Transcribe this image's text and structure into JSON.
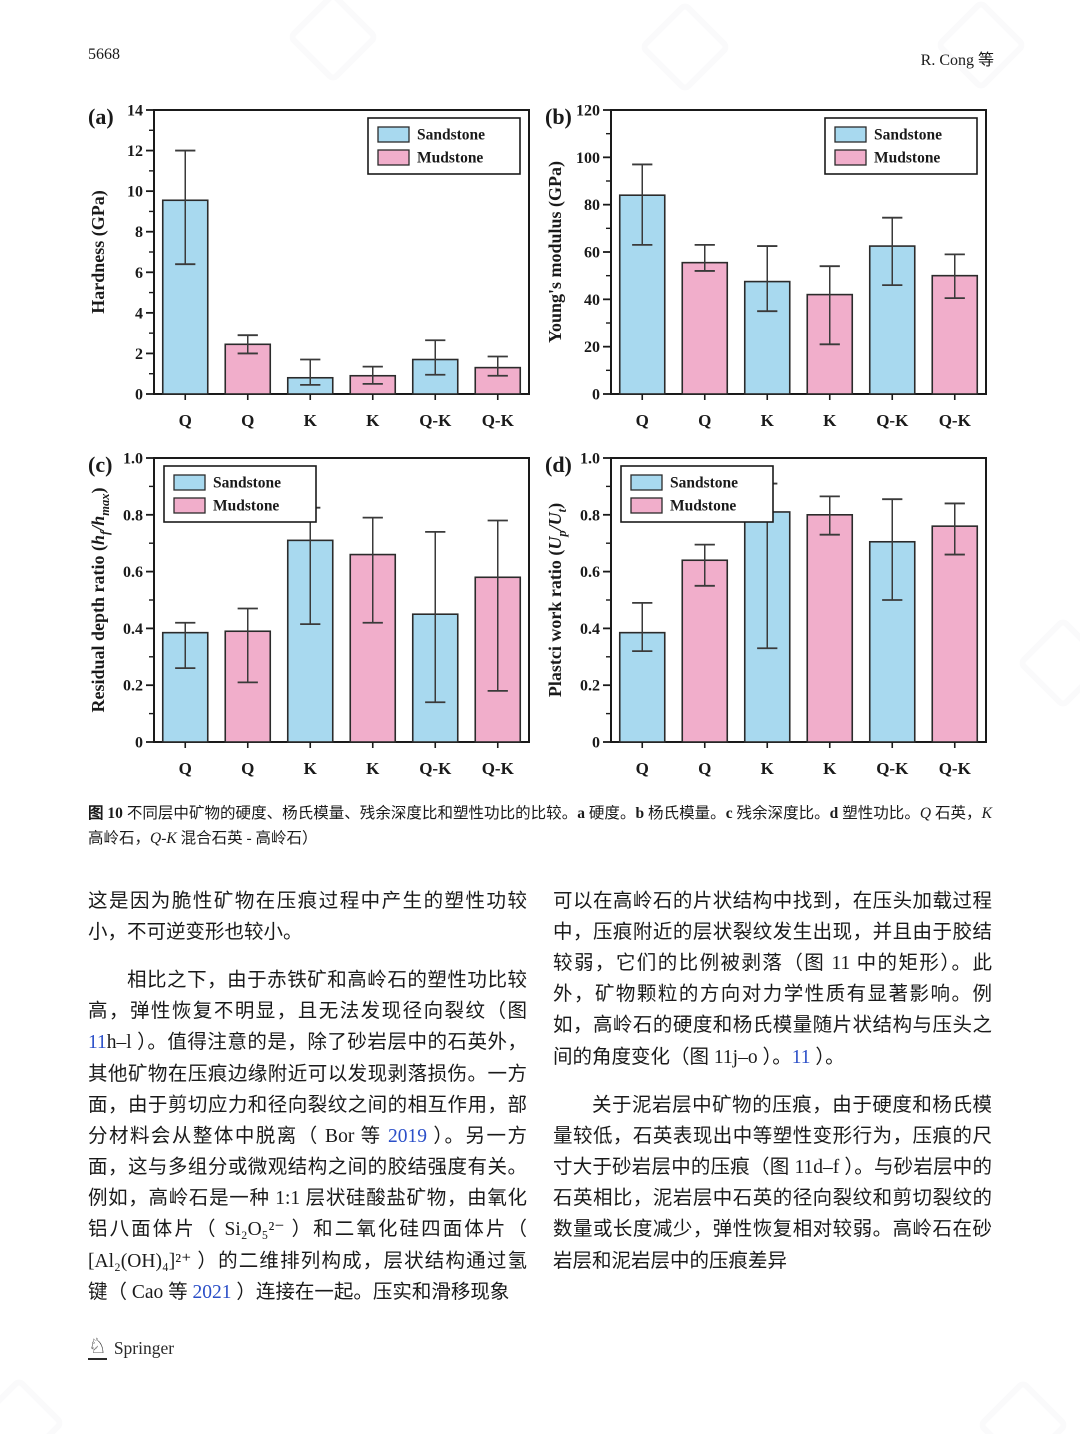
{
  "page": {
    "number": "5668",
    "running_head": "R. Cong 等"
  },
  "colors": {
    "sandstone": "#a8d9ef",
    "mudstone": "#f1aecb",
    "bar_border": "#2b2b2b",
    "axis": "#1a1a1a",
    "error_bar": "#3a3a3a",
    "link": "#2b4fc8"
  },
  "icons": {
    "publisher_logo": "springer-knight-icon",
    "watermark": "translator-watermark-icon"
  },
  "chart_data": [
    {
      "type": "bar",
      "panel": "(a)",
      "ylabel": "Hardness (GPa)",
      "ylabel_parts": [
        {
          "t": "Hardness (GPa)"
        }
      ],
      "ylim": [
        0,
        14
      ],
      "yticks": [
        0,
        2,
        4,
        6,
        8,
        10,
        12,
        14
      ],
      "ytick_labels": [
        "0",
        "2",
        "4",
        "6",
        "8",
        "10",
        "12",
        "14"
      ],
      "categories": [
        "Q",
        "Q",
        "K",
        "K",
        "Q-K",
        "Q-K"
      ],
      "bar_series": [
        "Sandstone",
        "Mudstone",
        "Sandstone",
        "Mudstone",
        "Sandstone",
        "Mudstone"
      ],
      "values": [
        9.55,
        2.45,
        0.8,
        0.9,
        1.7,
        1.3
      ],
      "err_low": [
        6.4,
        2.0,
        0.45,
        0.5,
        0.95,
        0.9
      ],
      "err_high": [
        12.0,
        2.9,
        1.7,
        1.35,
        2.65,
        1.85
      ],
      "grid": false,
      "legend": {
        "position": "top-right",
        "entries": [
          "Sandstone",
          "Mudstone"
        ]
      }
    },
    {
      "type": "bar",
      "panel": "(b)",
      "ylabel": "Young's modulus (GPa)",
      "ylabel_parts": [
        {
          "t": "Young's modulus (GPa)"
        }
      ],
      "ylim": [
        0,
        120
      ],
      "yticks": [
        0,
        20,
        40,
        60,
        80,
        100,
        120
      ],
      "ytick_labels": [
        "0",
        "20",
        "40",
        "60",
        "80",
        "100",
        "120"
      ],
      "categories": [
        "Q",
        "Q",
        "K",
        "K",
        "Q-K",
        "Q-K"
      ],
      "bar_series": [
        "Sandstone",
        "Mudstone",
        "Sandstone",
        "Mudstone",
        "Sandstone",
        "Mudstone"
      ],
      "values": [
        84,
        55.5,
        47.5,
        42,
        62.5,
        50
      ],
      "err_low": [
        63,
        52,
        35,
        21,
        46,
        40.5
      ],
      "err_high": [
        97,
        63,
        62.5,
        54,
        74.5,
        59
      ],
      "grid": false,
      "legend": {
        "position": "top-right",
        "entries": [
          "Sandstone",
          "Mudstone"
        ]
      }
    },
    {
      "type": "bar",
      "panel": "(c)",
      "ylabel": "Residual depth ratio (hf/hmax)",
      "ylabel_parts": [
        {
          "t": "Residual depth ratio ("
        },
        {
          "t": "h",
          "s": "i"
        },
        {
          "t": "f",
          "s": "isub"
        },
        {
          "t": "/",
          "s": "i"
        },
        {
          "t": "h",
          "s": "i"
        },
        {
          "t": "max",
          "s": "isub"
        },
        {
          "t": ")"
        }
      ],
      "ylim": [
        0,
        1.0
      ],
      "yticks": [
        0,
        0.2,
        0.4,
        0.6,
        0.8,
        1.0
      ],
      "ytick_labels": [
        "0",
        "0.2",
        "0.4",
        "0.6",
        "0.8",
        "1.0"
      ],
      "categories": [
        "Q",
        "Q",
        "K",
        "K",
        "Q-K",
        "Q-K"
      ],
      "bar_series": [
        "Sandstone",
        "Mudstone",
        "Sandstone",
        "Mudstone",
        "Sandstone",
        "Mudstone"
      ],
      "values": [
        0.385,
        0.39,
        0.71,
        0.66,
        0.45,
        0.58
      ],
      "err_low": [
        0.26,
        0.21,
        0.415,
        0.42,
        0.14,
        0.18
      ],
      "err_high": [
        0.42,
        0.47,
        0.825,
        0.79,
        0.74,
        0.78
      ],
      "grid": false,
      "legend": {
        "position": "top-left",
        "entries": [
          "Sandstone",
          "Mudstone"
        ]
      }
    },
    {
      "type": "bar",
      "panel": "(d)",
      "ylabel": "Plastci work ratio (Up/Ut)",
      "ylabel_parts": [
        {
          "t": "Plastci work ratio ("
        },
        {
          "t": "U",
          "s": "i"
        },
        {
          "t": "p",
          "s": "isub"
        },
        {
          "t": "/",
          "s": "i"
        },
        {
          "t": "U",
          "s": "i"
        },
        {
          "t": "t",
          "s": "isub"
        },
        {
          "t": ")"
        }
      ],
      "ylim": [
        0,
        1.0
      ],
      "yticks": [
        0,
        0.2,
        0.4,
        0.6,
        0.8,
        1.0
      ],
      "ytick_labels": [
        "0",
        "0.2",
        "0.4",
        "0.6",
        "0.8",
        "1.0"
      ],
      "categories": [
        "Q",
        "Q",
        "K",
        "K",
        "Q-K",
        "Q-K"
      ],
      "bar_series": [
        "Sandstone",
        "Mudstone",
        "Sandstone",
        "Mudstone",
        "Sandstone",
        "Mudstone"
      ],
      "values": [
        0.385,
        0.64,
        0.81,
        0.8,
        0.705,
        0.76
      ],
      "err_low": [
        0.32,
        0.55,
        0.33,
        0.73,
        0.5,
        0.66
      ],
      "err_high": [
        0.49,
        0.695,
        0.91,
        0.865,
        0.855,
        0.84
      ],
      "grid": false,
      "legend": {
        "position": "top-left",
        "entries": [
          "Sandstone",
          "Mudstone"
        ]
      }
    }
  ],
  "figure": {
    "caption": [
      {
        "t": "图 10",
        "s": "b"
      },
      {
        "t": "  不同层中矿物的硬度、杨氏模量、残余深度比和塑性功比的比较。"
      },
      {
        "t": "a",
        "s": "b"
      },
      {
        "t": " 硬度。"
      },
      {
        "t": "b",
        "s": "b"
      },
      {
        "t": " 杨氏模量。"
      },
      {
        "t": "c",
        "s": "b"
      },
      {
        "t": " 残余深度比。"
      },
      {
        "t": "d",
        "s": "b"
      },
      {
        "t": " 塑性功比。"
      },
      {
        "t": "Q",
        "s": "i"
      },
      {
        "t": " 石英，"
      },
      {
        "t": "K",
        "s": "i"
      },
      {
        "t": " 高岭石，"
      },
      {
        "t": "Q-K",
        "s": "i"
      },
      {
        "t": " 混合石英 - 高岭石）"
      }
    ]
  },
  "body": {
    "left": [
      {
        "segments": [
          {
            "t": "这是因为脆性矿物在压痕过程中产生的塑性功较小，不可逆变形也较小。"
          }
        ]
      },
      {
        "segments": [
          {
            "t": "相比之下，由于赤铁矿和高岭石的塑性功比较高，弹性恢复不明显，且无法发现径向裂纹（图 "
          },
          {
            "t": "11",
            "s": "link"
          },
          {
            "t": "h–l ）。值得注意的是，除了砂岩层中的石英外，其他矿物在压痕边缘附近可以发现剥落损伤。一方面，由于剪切应力和径向裂纹之间的相互作用，部分材料会从整体中脱离（ Bor 等 "
          },
          {
            "t": "2019",
            "s": "link"
          },
          {
            "t": " ）。另一方面，这与多组分或微观结构之间的胶结强度有关。例如，高岭石是一种 1:1 层状硅酸盐矿物，由氧化铝八面体片（ Si₂O₅²⁻ ）和二氧化硅四面体片（ [Al₂(OH)₄]²⁺ ）的二维排列构成，层状结构通过氢键（ Cao 等 "
          },
          {
            "t": "2021",
            "s": "link"
          },
          {
            "t": " ）连接在一起。压实和滑移现象"
          }
        ]
      }
    ],
    "right": [
      {
        "segments": [
          {
            "t": "可以在高岭石的片状结构中找到，在压头加载过程中，压痕附近的层状裂纹发生出现，并且由于胶结较弱，它们的比例被剥落（图 11 中的矩形）。此外，矿物颗粒的方向对力学性质有显著影响。例如，高岭石的硬度和杨氏模量随片状结构与压头之间的角度变化（图 11j–o ）。"
          },
          {
            "t": "11",
            "s": "link"
          },
          {
            "t": " ）。"
          }
        ]
      },
      {
        "segments": [
          {
            "t": "关于泥岩层中矿物的压痕，由于硬度和杨氏模量较低，石英表现出中等塑性变形行为，压痕的尺寸大于砂岩层中的压痕（图 11d–f ）。与砂岩层中的石英相比，泥岩层中石英的径向裂纹和剪切裂纹的数量或长度减少，弹性恢复相对较弱。高岭石在砂岩层和泥岩层中的压痕差异"
          }
        ]
      }
    ]
  },
  "footer": {
    "publisher": "Springer"
  }
}
